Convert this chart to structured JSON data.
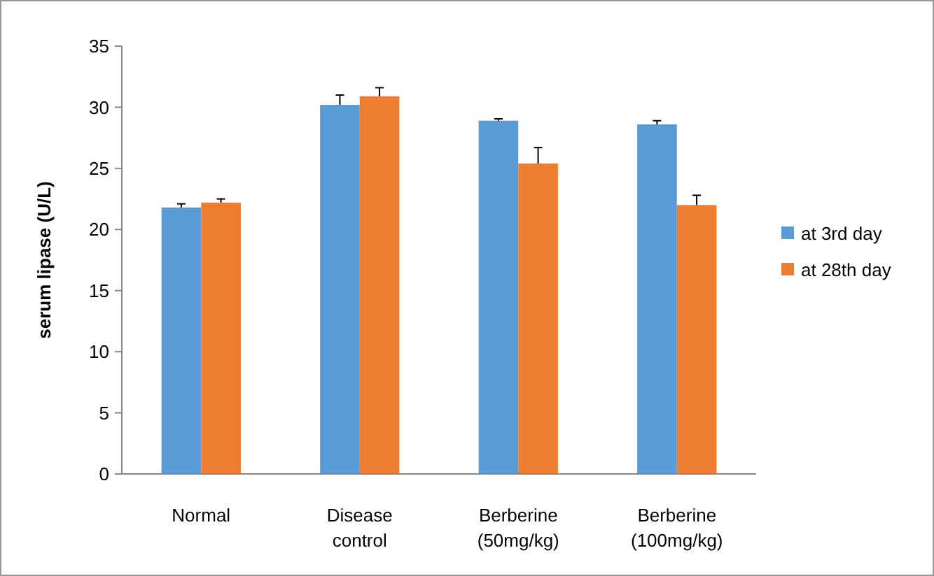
{
  "chart_data": {
    "type": "bar",
    "ylabel": "serum lipase  (U/L)",
    "categories": [
      "Normal",
      "Disease control",
      "Berberine (50mg/kg)",
      "Berberine (100mg/kg)"
    ],
    "series": [
      {
        "name": "at 3rd day",
        "color": "#5b9bd5",
        "values": [
          21.8,
          30.2,
          28.9,
          28.6
        ],
        "errors": [
          0.3,
          0.8,
          0.15,
          0.3
        ]
      },
      {
        "name": "at 28th day",
        "color": "#ed7d31",
        "values": [
          22.2,
          30.9,
          25.4,
          22.0
        ],
        "errors": [
          0.3,
          0.7,
          1.3,
          0.8
        ]
      }
    ],
    "ylim": [
      0,
      35
    ],
    "yticks": [
      0,
      5,
      10,
      15,
      20,
      25,
      30,
      35
    ],
    "grid": false,
    "legend": "right"
  }
}
